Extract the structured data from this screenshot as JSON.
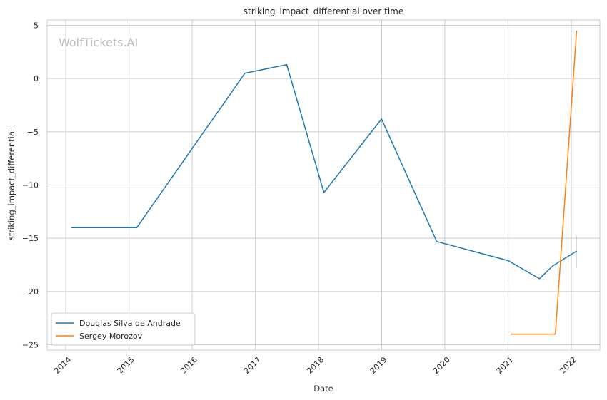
{
  "chart_data": {
    "type": "line",
    "title": "striking_impact_differential over time",
    "xlabel": "Date",
    "ylabel": "striking_impact_differential",
    "watermark": "WolfTickets.AI",
    "xlim": [
      "2013-09-15",
      "2022-06-15"
    ],
    "ylim": [
      -25.5,
      5.5
    ],
    "x_ticks": [
      "2014",
      "2015",
      "2016",
      "2017",
      "2018",
      "2019",
      "2020",
      "2021",
      "2022"
    ],
    "y_ticks": [
      5,
      0,
      -5,
      -10,
      -15,
      -20,
      -25
    ],
    "grid": true,
    "legend_position": "lower-left",
    "series": [
      {
        "name": "Douglas Silva de Andrade",
        "color": "#1f77b4",
        "points": [
          {
            "x": "2014-02-01",
            "y": -14.0
          },
          {
            "x": "2015-02-15",
            "y": -14.0
          },
          {
            "x": "2016-11-01",
            "y": 0.5
          },
          {
            "x": "2017-07-01",
            "y": 1.3
          },
          {
            "x": "2018-02-01",
            "y": -10.7
          },
          {
            "x": "2018-12-31",
            "y": -3.8
          },
          {
            "x": "2019-11-15",
            "y": -15.3
          },
          {
            "x": "2021-01-01",
            "y": -17.1
          },
          {
            "x": "2021-07-01",
            "y": -18.8
          },
          {
            "x": "2021-09-15",
            "y": -17.6
          },
          {
            "x": "2022-02-01",
            "y": -16.2
          }
        ],
        "error_bars": [
          {
            "x": "2021-01-01",
            "low": -19.0,
            "high": -15.3
          },
          {
            "x": "2022-02-01",
            "low": -17.8,
            "high": -14.8
          }
        ]
      },
      {
        "name": "Sergey Morozov",
        "color": "#ff7f0e",
        "points": [
          {
            "x": "2021-01-15",
            "y": -24.0
          },
          {
            "x": "2021-10-01",
            "y": -24.0
          },
          {
            "x": "2022-02-01",
            "y": 4.5
          }
        ]
      }
    ]
  }
}
